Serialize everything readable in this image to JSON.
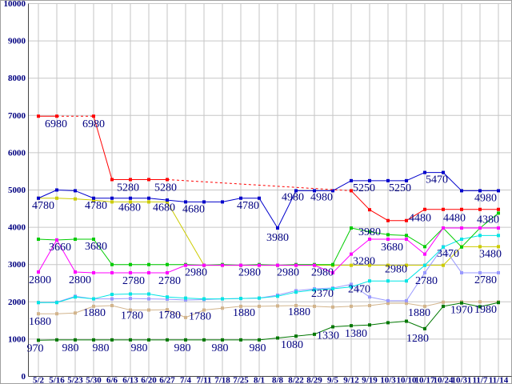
{
  "chart_data": {
    "type": "line",
    "title": "",
    "xlabel": "",
    "ylabel": "",
    "legend_position": "none",
    "grid": true,
    "background": "#ffffff",
    "grid_color": "#c6c6c6",
    "axis_color": "#444444",
    "border_color": "#a0a0a0",
    "label_color": "#000080",
    "ylim": [
      0,
      10000
    ],
    "y_ticks": [
      0,
      1000,
      2000,
      3000,
      4000,
      5000,
      6000,
      7000,
      8000,
      9000,
      10000
    ],
    "y_tick_labels": [
      "0",
      "1000",
      "2000",
      "3000",
      "4000",
      "5000",
      "6000",
      "7000",
      "8000",
      "9000",
      "10000"
    ],
    "categories": [
      "5/2",
      "5/16",
      "5/23",
      "5/30",
      "6/6",
      "6/13",
      "6/20",
      "6/27",
      "7/4",
      "7/11",
      "7/18",
      "7/25",
      "8/1",
      "8/8",
      "8/22",
      "8/29",
      "9/5",
      "9/12",
      "9/19",
      "10/3",
      "10/10",
      "10/17",
      "10/24",
      "10/31",
      "11/7",
      "11/14"
    ],
    "series": [
      {
        "name": "yellow-line",
        "color": "#cccc00",
        "gap_dash": false,
        "values": [
          4780,
          4780,
          4760,
          4730,
          4680,
          4680,
          4680,
          4680,
          null,
          2980,
          2980,
          2980,
          2980,
          2980,
          2980,
          2980,
          2980,
          2980,
          2980,
          2980,
          2980,
          2980,
          2980,
          3480,
          3480,
          3480
        ],
        "labels": [
          {
            "i": 5,
            "t": "4680",
            "dx": -1,
            "dy": 11
          },
          {
            "i": 7,
            "t": "4680",
            "dx": -4,
            "dy": 11
          },
          {
            "i": 24,
            "t": "3480",
            "dx": 13,
            "dy": 13
          }
        ]
      },
      {
        "name": "tan-line",
        "color": "#d2b48c",
        "gap_dash": false,
        "values": [
          1680,
          1680,
          1700,
          1880,
          1900,
          1780,
          1780,
          1790,
          1580,
          1780,
          1830,
          1880,
          1880,
          1890,
          1900,
          1880,
          1860,
          1880,
          1900,
          1960,
          1960,
          1880,
          1990,
          2000,
          2000,
          2000
        ],
        "labels": [
          {
            "i": 0,
            "t": "1680",
            "dx": 2,
            "dy": 14
          },
          {
            "i": 3,
            "t": "1880",
            "dx": 1,
            "dy": 12
          },
          {
            "i": 5,
            "t": "1780",
            "dx": 2,
            "dy": 11
          },
          {
            "i": 7,
            "t": "1780",
            "dx": 3,
            "dy": 11
          },
          {
            "i": 9,
            "t": "1780",
            "dx": -5,
            "dy": 12
          },
          {
            "i": 11,
            "t": "1880",
            "dx": 4,
            "dy": 12
          },
          {
            "i": 14,
            "t": "1880",
            "dx": 4,
            "dy": 12
          },
          {
            "i": 21,
            "t": "1880",
            "dx": -7,
            "dy": 12
          }
        ]
      },
      {
        "name": "periwinkle-line",
        "color": "#9999ff",
        "gap_dash": false,
        "values": [
          1980,
          1990,
          2150,
          2080,
          2080,
          2090,
          2080,
          2070,
          2050,
          2060,
          2080,
          2090,
          2100,
          2180,
          2300,
          2350,
          2370,
          2470,
          2130,
          2030,
          2030,
          2780,
          3480,
          2780,
          2780,
          2780
        ],
        "labels": [
          {
            "i": 16,
            "t": "2370",
            "dx": -13,
            "dy": 11
          },
          {
            "i": 17,
            "t": "2470",
            "dx": 10,
            "dy": 10
          },
          {
            "i": 21,
            "t": "2780",
            "dx": 2,
            "dy": 14
          },
          {
            "i": 24,
            "t": "2780",
            "dx": 7,
            "dy": 13
          }
        ]
      },
      {
        "name": "cyan-line",
        "color": "#00e5e5",
        "gap_dash": false,
        "values": [
          1980,
          1980,
          2130,
          2080,
          2200,
          2210,
          2210,
          2130,
          2100,
          2080,
          2080,
          2090,
          2100,
          2150,
          2260,
          2320,
          2350,
          2400,
          2560,
          2560,
          2560,
          2980,
          3470,
          3680,
          3780,
          3780
        ],
        "labels": [
          {
            "i": 21,
            "t": "2980",
            "dx": -36,
            "dy": 9
          },
          {
            "i": 22,
            "t": "3470",
            "dx": 6,
            "dy": 12
          }
        ]
      },
      {
        "name": "dark-green-line",
        "color": "#007700",
        "gap_dash": false,
        "values": [
          970,
          980,
          980,
          980,
          980,
          980,
          980,
          980,
          980,
          980,
          980,
          980,
          980,
          1030,
          1080,
          1130,
          1330,
          1360,
          1380,
          1440,
          1480,
          1280,
          1880,
          1970,
          1870,
          1980
        ],
        "labels": [
          {
            "i": 0,
            "t": "970",
            "dx": -4,
            "dy": 14
          },
          {
            "i": 2,
            "t": "980",
            "dx": -6,
            "dy": 14
          },
          {
            "i": 4,
            "t": "980",
            "dx": -14,
            "dy": 14
          },
          {
            "i": 6,
            "t": "980",
            "dx": -12,
            "dy": 14
          },
          {
            "i": 8,
            "t": "980",
            "dx": -4,
            "dy": 14
          },
          {
            "i": 10,
            "t": "980",
            "dx": -3,
            "dy": 14
          },
          {
            "i": 12,
            "t": "980",
            "dx": -2,
            "dy": 14
          },
          {
            "i": 14,
            "t": "1080",
            "dx": -5,
            "dy": 15
          },
          {
            "i": 16,
            "t": "1330",
            "dx": -6,
            "dy": 15
          },
          {
            "i": 18,
            "t": "1380",
            "dx": -17,
            "dy": 15
          },
          {
            "i": 21,
            "t": "1280",
            "dx": -9,
            "dy": 16
          },
          {
            "i": 23,
            "t": "1970",
            "dx": 0,
            "dy": 13
          },
          {
            "i": 25,
            "t": "1980",
            "dx": -16,
            "dy": 13
          }
        ]
      },
      {
        "name": "green-line",
        "color": "#00cc00",
        "gap_dash": false,
        "values": [
          3680,
          3660,
          3680,
          3680,
          3000,
          3000,
          3000,
          3000,
          3000,
          2980,
          3000,
          2980,
          3000,
          2980,
          3000,
          3000,
          3000,
          3980,
          3880,
          3800,
          3780,
          3480,
          3980,
          3470,
          3980,
          4380
        ],
        "labels": [
          {
            "i": 3,
            "t": "3680",
            "dx": 3,
            "dy": 13
          },
          {
            "i": 17,
            "t": "3980",
            "dx": 23,
            "dy": 9
          },
          {
            "i": 25,
            "t": "4380",
            "dx": -13,
            "dy": 12
          }
        ]
      },
      {
        "name": "magenta-line",
        "color": "#ff00ff",
        "gap_dash": false,
        "values": [
          2800,
          3660,
          2800,
          2780,
          2780,
          2780,
          2780,
          2780,
          2980,
          2980,
          2980,
          2980,
          2980,
          2980,
          2980,
          2980,
          2780,
          3280,
          3680,
          3680,
          3680,
          3280,
          3980,
          3980,
          3980,
          3980
        ],
        "labels": [
          {
            "i": 0,
            "t": "2800",
            "dx": 2,
            "dy": 14
          },
          {
            "i": 1,
            "t": "3660",
            "dx": 4,
            "dy": 13
          },
          {
            "i": 2,
            "t": "2800",
            "dx": 6,
            "dy": 14
          },
          {
            "i": 5,
            "t": "2780",
            "dx": 4,
            "dy": 14
          },
          {
            "i": 7,
            "t": "2780",
            "dx": 3,
            "dy": 14
          },
          {
            "i": 8,
            "t": "2980",
            "dx": 13,
            "dy": 13
          },
          {
            "i": 11,
            "t": "2980",
            "dx": 11,
            "dy": 13
          },
          {
            "i": 13,
            "t": "2980",
            "dx": 13,
            "dy": 13
          },
          {
            "i": 15,
            "t": "2980",
            "dx": 10,
            "dy": 13
          },
          {
            "i": 17,
            "t": "3280",
            "dx": 16,
            "dy": 13
          },
          {
            "i": 19,
            "t": "3680",
            "dx": 5,
            "dy": 14
          }
        ]
      },
      {
        "name": "blue-line",
        "color": "#0000cc",
        "gap_dash": false,
        "values": [
          4780,
          5000,
          4980,
          4780,
          4780,
          4780,
          4780,
          4730,
          4680,
          4680,
          4680,
          4780,
          4780,
          3980,
          4980,
          4980,
          4980,
          5250,
          5250,
          5250,
          5250,
          5470,
          5470,
          4980,
          4980,
          4980
        ],
        "labels": [
          {
            "i": 0,
            "t": "4780",
            "dx": 6,
            "dy": 13
          },
          {
            "i": 3,
            "t": "4780",
            "dx": 3,
            "dy": 13
          },
          {
            "i": 8,
            "t": "4680",
            "dx": 10,
            "dy": 13
          },
          {
            "i": 11,
            "t": "4780",
            "dx": 9,
            "dy": 13
          },
          {
            "i": 13,
            "t": "3980",
            "dx": 0,
            "dy": 16
          },
          {
            "i": 14,
            "t": "4980",
            "dx": -4,
            "dy": 12
          },
          {
            "i": 16,
            "t": "4980",
            "dx": -14,
            "dy": 12
          },
          {
            "i": 18,
            "t": "5250",
            "dx": -7,
            "dy": 13
          },
          {
            "i": 20,
            "t": "5250",
            "dx": -8,
            "dy": 13
          },
          {
            "i": 22,
            "t": "5470",
            "dx": -8,
            "dy": 13
          },
          {
            "i": 24,
            "t": "4980",
            "dx": 7,
            "dy": 13
          }
        ]
      },
      {
        "name": "red-line",
        "color": "#ff0000",
        "gap_dash": true,
        "values": [
          6980,
          6980,
          null,
          6980,
          5280,
          5280,
          5280,
          5280,
          null,
          null,
          null,
          null,
          null,
          null,
          null,
          null,
          null,
          4980,
          4470,
          4180,
          4180,
          4480,
          4480,
          4480,
          4480,
          4480
        ],
        "labels": [
          {
            "i": 0,
            "t": "6980",
            "dx": 22,
            "dy": 14
          },
          {
            "i": 3,
            "t": "6980",
            "dx": 0,
            "dy": 14
          },
          {
            "i": 5,
            "t": "5280",
            "dx": -3,
            "dy": 14
          },
          {
            "i": 7,
            "t": "5280",
            "dx": -2,
            "dy": 14
          },
          {
            "i": 21,
            "t": "4480",
            "dx": -6,
            "dy": 15
          },
          {
            "i": 23,
            "t": "4480",
            "dx": -9,
            "dy": 15
          }
        ]
      }
    ]
  }
}
